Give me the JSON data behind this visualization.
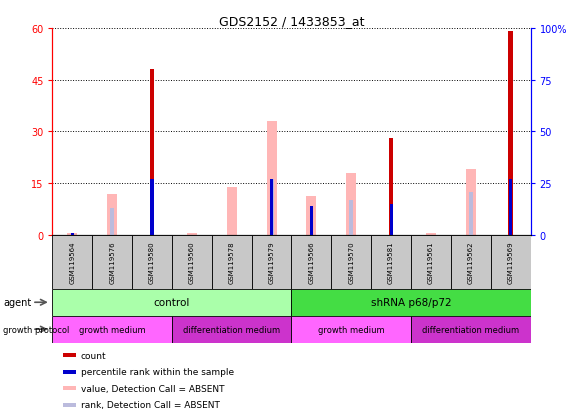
{
  "title": "GDS2152 / 1433853_at",
  "samples": [
    "GSM119564",
    "GSM119576",
    "GSM119580",
    "GSM119560",
    "GSM119578",
    "GSM119579",
    "GSM119566",
    "GSM119570",
    "GSM119581",
    "GSM119561",
    "GSM119562",
    "GSM119569"
  ],
  "count": [
    0,
    0,
    48,
    0,
    0,
    0,
    0,
    0,
    28,
    0,
    0,
    59
  ],
  "percentile_rank": [
    1,
    0,
    27,
    0,
    0,
    27,
    14,
    0,
    15,
    0,
    0,
    27
  ],
  "value_absent": [
    1,
    20,
    0,
    1,
    23,
    55,
    19,
    30,
    0,
    1,
    32,
    0
  ],
  "rank_absent": [
    0,
    13,
    0,
    0,
    0,
    27,
    0,
    17,
    0,
    0,
    21,
    0
  ],
  "ylim_left": [
    0,
    60
  ],
  "ylim_right": [
    0,
    100
  ],
  "yticks_left": [
    0,
    15,
    30,
    45,
    60
  ],
  "yticks_right": [
    0,
    25,
    50,
    75,
    100
  ],
  "agent_groups": [
    {
      "label": "control",
      "start": 0,
      "end": 6,
      "color": "#AAFFAA"
    },
    {
      "label": "shRNA p68/p72",
      "start": 6,
      "end": 12,
      "color": "#44DD44"
    }
  ],
  "growth_groups": [
    {
      "label": "growth medium",
      "start": 0,
      "end": 3,
      "color": "#FF77FF"
    },
    {
      "label": "differentiation medium",
      "start": 3,
      "end": 6,
      "color": "#DD44DD"
    },
    {
      "label": "growth medium",
      "start": 6,
      "end": 9,
      "color": "#FF77FF"
    },
    {
      "label": "differentiation medium",
      "start": 9,
      "end": 12,
      "color": "#DD44DD"
    }
  ],
  "count_color": "#CC0000",
  "rank_color": "#0000CC",
  "value_absent_color": "#FFB6B6",
  "rank_absent_color": "#BBBBDD",
  "bg_color": "#FFFFFF",
  "sample_bg_color": "#C8C8C8"
}
